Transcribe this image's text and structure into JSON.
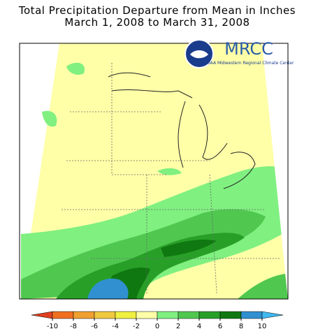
{
  "title": [
    "Total Precipitation Departure from Mean in Inches",
    "March 1, 2008 to March 31, 2008"
  ],
  "logo": {
    "name": "MRCC",
    "subtitle": "NOAA Midwestern Regional Climate Center"
  },
  "legend": {
    "ticks": [
      -10,
      -8,
      -6,
      -4,
      -2,
      0,
      2,
      4,
      6,
      8,
      10
    ],
    "colors": [
      "#e04020",
      "#f07020",
      "#f0a030",
      "#f0c840",
      "#f0f040",
      "#ffffa8",
      "#80f080",
      "#50c850",
      "#28a028",
      "#107810",
      "#3090d0",
      "#40b8f0"
    ]
  }
}
